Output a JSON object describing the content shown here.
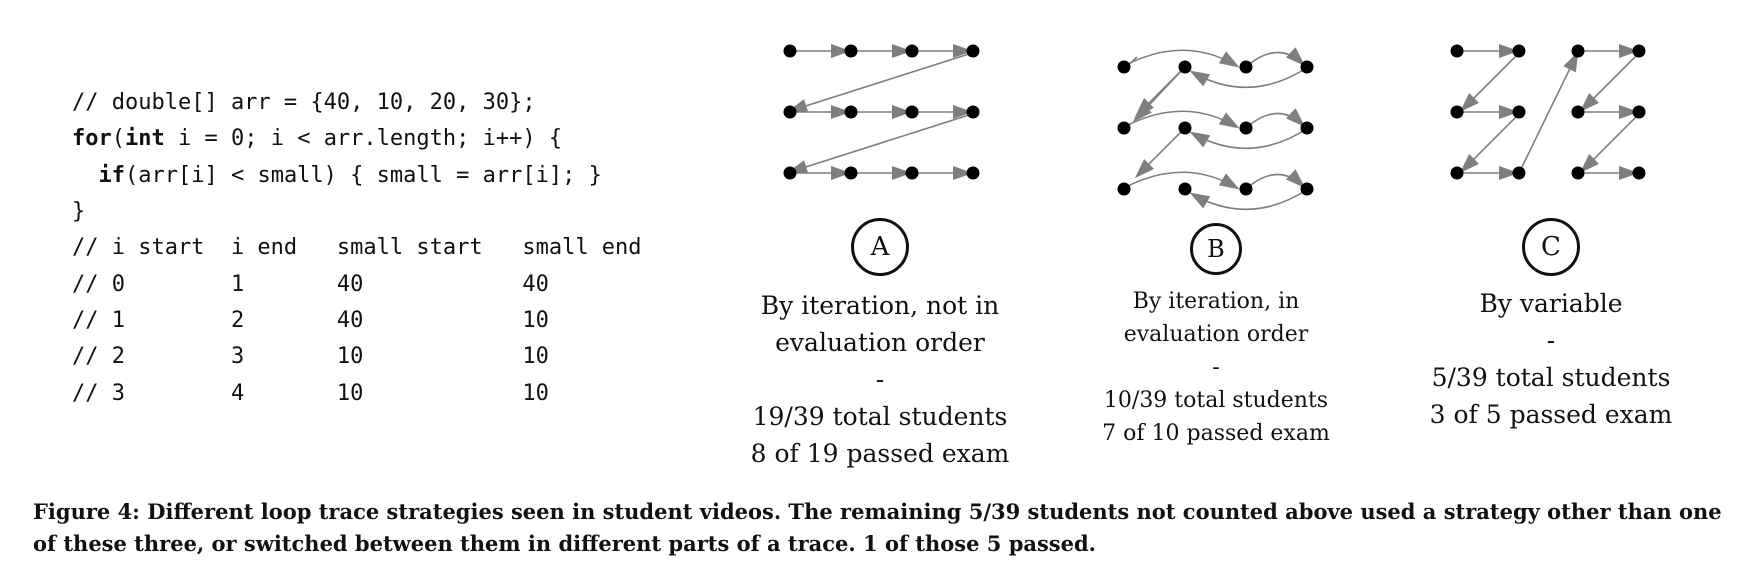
{
  "code": {
    "lines": [
      "// double[] arr = {40, 10, 20, 30};",
      "for(int i = 0; i < arr.length; i++) {",
      "  if(arr[i] < small) { small = arr[i]; }",
      "}",
      "// i start  i end   small start   small end",
      "// 0        1       40            40",
      "// 1        2       40            10",
      "// 2        3       10            10",
      "// 3        4       10            10"
    ]
  },
  "strategies": [
    {
      "letter": "A",
      "lines": [
        "By iteration, not in",
        "evaluation order",
        "-",
        "19/39 total students",
        "8 of 19 passed exam"
      ]
    },
    {
      "letter": "B",
      "lines": [
        "By iteration, in",
        "evaluation order",
        "-",
        "10/39 total students",
        "7 of 10 passed exam"
      ]
    },
    {
      "letter": "C",
      "lines": [
        "By variable",
        "-",
        "5/39 total students",
        "3 of 5 passed exam"
      ]
    }
  ],
  "caption": "Figure 4: Different loop trace strategies seen in student videos. The remaining 5/39 students not counted above used a strategy other than one of these three, or switched between them in different parts of a trace. 1 of those 5 passed.",
  "colors": {
    "node": "#000000",
    "arrow": "#7f7f7f",
    "text": "#111111"
  }
}
